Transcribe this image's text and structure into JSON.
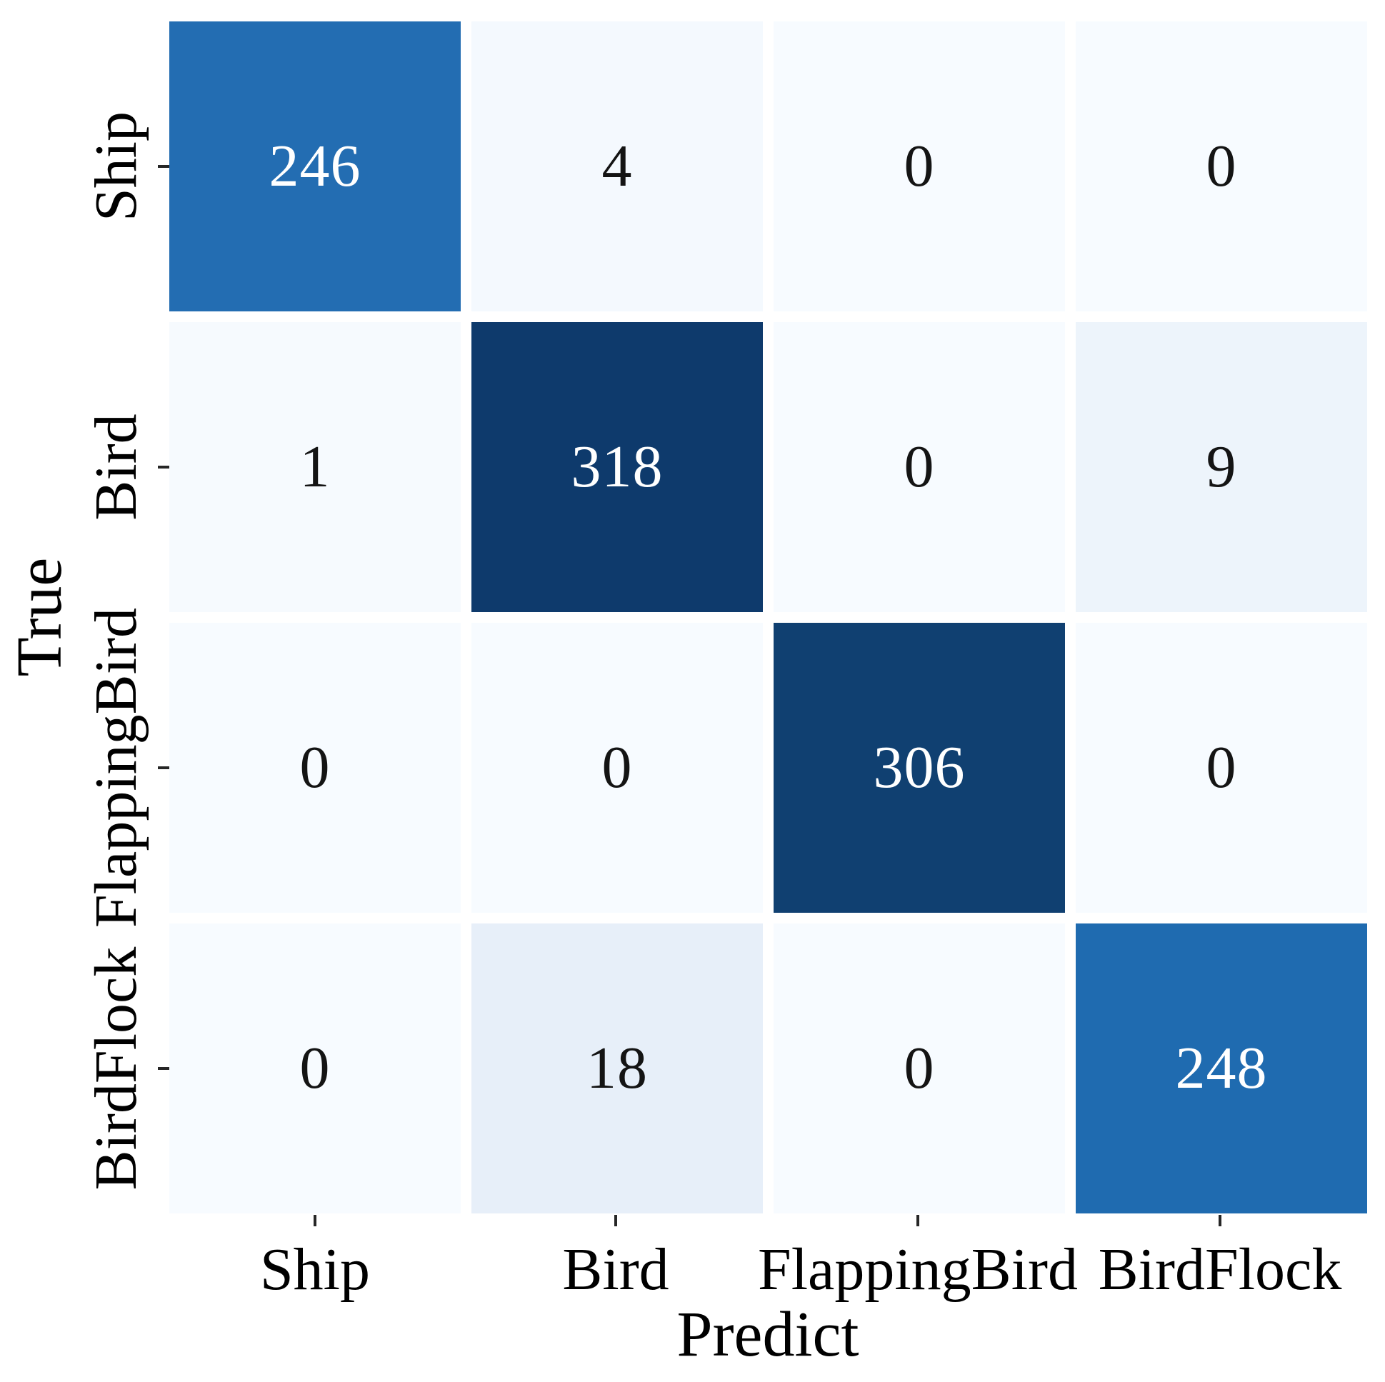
{
  "figure": {
    "background": "#ffffff",
    "tick_color": "#262626",
    "label_color": "#000000"
  },
  "chart_data": {
    "type": "heatmap",
    "title": "",
    "xlabel": "Predict",
    "ylabel": "True",
    "x_tick_labels": [
      "Ship",
      "Bird",
      "FlappingBird",
      "BirdFlock"
    ],
    "y_tick_labels": [
      "Ship",
      "Bird",
      "FlappingBird",
      "BirdFlock"
    ],
    "matrix": [
      [
        246,
        4,
        0,
        0
      ],
      [
        1,
        318,
        0,
        9
      ],
      [
        0,
        0,
        306,
        0
      ],
      [
        0,
        18,
        0,
        248
      ]
    ],
    "vmin": 0,
    "vmax": 318,
    "colormap": "Blues",
    "grid": false,
    "legend_position": "none",
    "cell_colors": [
      [
        "#236db2",
        "#f4f9fe",
        "#f7fbff",
        "#f7fbff"
      ],
      [
        "#f6fafe",
        "#0e3a6c",
        "#f7fbff",
        "#edf4fb"
      ],
      [
        "#f7fbff",
        "#f7fbff",
        "#104071",
        "#f7fbff"
      ],
      [
        "#f7fbff",
        "#e7eff9",
        "#f7fbff",
        "#1f6bb0"
      ]
    ],
    "cell_text_colors": [
      [
        "#ffffff",
        "#141414",
        "#141414",
        "#141414"
      ],
      [
        "#141414",
        "#ffffff",
        "#141414",
        "#141414"
      ],
      [
        "#141414",
        "#141414",
        "#ffffff",
        "#141414"
      ],
      [
        "#141414",
        "#141414",
        "#141414",
        "#ffffff"
      ]
    ]
  }
}
